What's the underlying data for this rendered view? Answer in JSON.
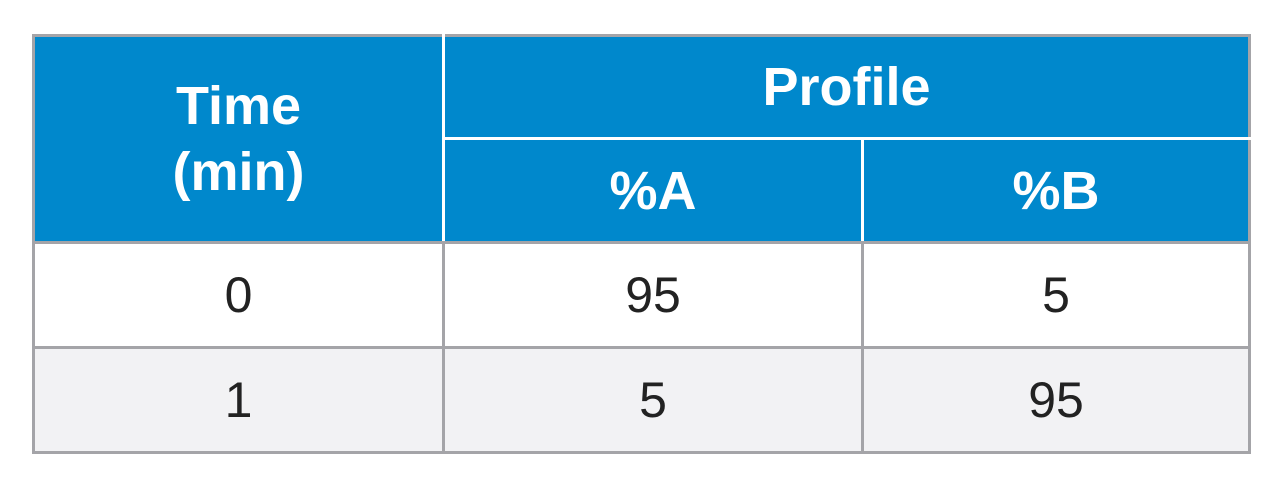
{
  "table": {
    "header": {
      "time_label": "Time\n(min)",
      "profile_label": "Profile",
      "col_a_label": "%A",
      "col_b_label": "%B"
    },
    "rows": [
      {
        "time": "0",
        "a": "95",
        "b": "5"
      },
      {
        "time": "1",
        "a": "5",
        "b": "95"
      }
    ]
  },
  "colors": {
    "header_bg": "#0088cc",
    "header_text": "#ffffff",
    "border": "#a4a4a8",
    "alt_row_bg": "#f2f2f4"
  }
}
